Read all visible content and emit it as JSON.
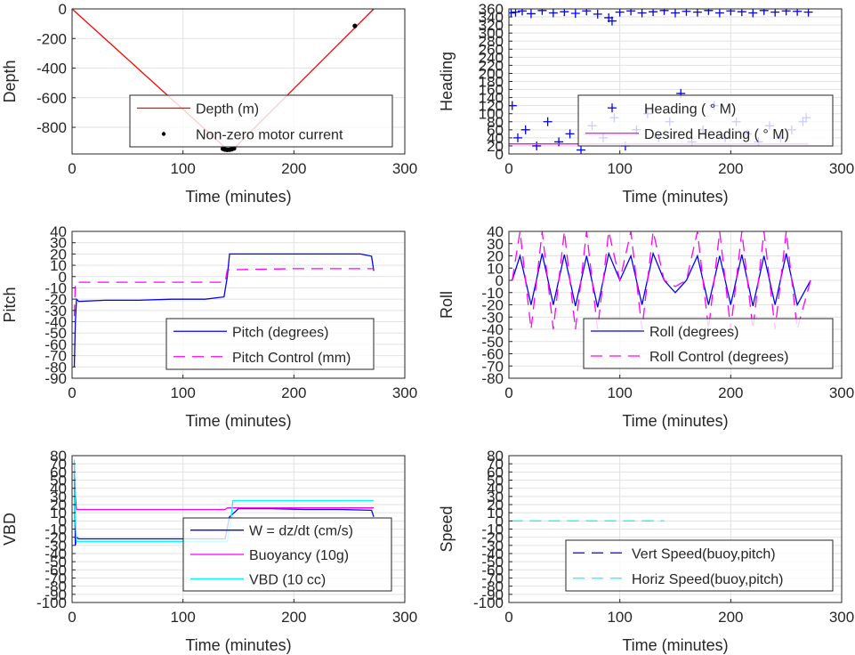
{
  "chart_data": [
    {
      "id": "depth",
      "type": "line",
      "xlabel": "Time (minutes)",
      "ylabel": "Depth",
      "xlim": [
        0,
        300
      ],
      "ylim": [
        -980,
        0
      ],
      "xticks": [
        0,
        100,
        200,
        300
      ],
      "yticks": [
        -800,
        -600,
        -400,
        -200,
        0
      ],
      "grid": true,
      "legend_position": "bottom-right",
      "series": [
        {
          "name": "Depth (m)",
          "color": "#ff0000",
          "style": "solid",
          "marker": "none",
          "x": [
            0,
            140,
            145,
            272
          ],
          "y": [
            0,
            -950,
            -950,
            0
          ]
        },
        {
          "name": "Non-zero motor current",
          "color": "#000000",
          "style": "none",
          "marker": "dot",
          "x": [
            136,
            138,
            140,
            142,
            144,
            146,
            255
          ],
          "y": [
            -945,
            -950,
            -952,
            -951,
            -948,
            -942,
            -115
          ]
        }
      ]
    },
    {
      "id": "heading",
      "type": "scatter",
      "xlabel": "Time (minutes)",
      "ylabel": "Heading",
      "xlim": [
        0,
        300
      ],
      "ylim": [
        0,
        360
      ],
      "xticks": [
        0,
        100,
        200,
        300
      ],
      "yticks": [
        0,
        20,
        40,
        60,
        80,
        100,
        120,
        140,
        160,
        180,
        200,
        220,
        240,
        260,
        280,
        300,
        320,
        340,
        360
      ],
      "grid": true,
      "legend_position": "bottom-right",
      "series": [
        {
          "name": "Heading ( ° M)",
          "color": "#0000ff",
          "style": "none",
          "marker": "plus",
          "x": [
            2,
            6,
            12,
            20,
            30,
            40,
            50,
            60,
            70,
            80,
            90,
            93,
            100,
            110,
            120,
            130,
            140,
            150,
            160,
            170,
            180,
            190,
            200,
            210,
            220,
            230,
            240,
            250,
            260,
            270,
            3,
            8,
            15,
            25,
            35,
            45,
            55,
            65,
            75,
            85,
            95,
            105,
            115,
            125,
            135,
            145,
            155,
            165,
            175,
            185,
            195,
            205,
            215,
            225,
            235,
            245,
            255,
            265,
            268
          ],
          "y": [
            350,
            352,
            355,
            348,
            356,
            350,
            353,
            349,
            355,
            347,
            338,
            330,
            352,
            355,
            350,
            353,
            356,
            350,
            354,
            352,
            356,
            350,
            355,
            353,
            350,
            356,
            352,
            355,
            354,
            352,
            120,
            40,
            60,
            20,
            80,
            30,
            50,
            10,
            70,
            40,
            90,
            20,
            60,
            100,
            40,
            80,
            150,
            30,
            60,
            120,
            40,
            80,
            50,
            30,
            70,
            40,
            60,
            80,
            90
          ]
        },
        {
          "name": "Desired Heading ( ° M)",
          "color": "#ff00ff",
          "style": "solid",
          "marker": "none",
          "x": [
            0,
            50,
            100,
            150,
            200,
            270
          ],
          "y": [
            25,
            25,
            25,
            25,
            25,
            25
          ]
        }
      ]
    },
    {
      "id": "pitch",
      "type": "line",
      "xlabel": "Time (minutes)",
      "ylabel": "Pitch",
      "xlim": [
        0,
        300
      ],
      "ylim": [
        -90,
        40
      ],
      "xticks": [
        0,
        100,
        200,
        300
      ],
      "yticks": [
        -90,
        -80,
        -70,
        -60,
        -50,
        -40,
        -30,
        -20,
        -10,
        0,
        10,
        20,
        30,
        40
      ],
      "grid": true,
      "legend_position": "bottom-right",
      "series": [
        {
          "name": "Pitch (degrees)",
          "color": "#0000ff",
          "style": "solid",
          "marker": "none",
          "x": [
            2,
            3,
            4,
            6,
            30,
            60,
            90,
            120,
            137,
            140,
            142,
            170,
            200,
            230,
            260,
            270,
            272
          ],
          "y": [
            -80,
            -40,
            -20,
            -22,
            -21,
            -21,
            -20,
            -20,
            -18,
            0,
            20,
            20,
            20,
            20,
            20,
            18,
            5
          ]
        },
        {
          "name": "Pitch Control (mm)",
          "color": "#ff00ff",
          "style": "dash",
          "marker": "none",
          "x": [
            2,
            3,
            10,
            60,
            100,
            138,
            140,
            200,
            272
          ],
          "y": [
            -35,
            -5,
            -5,
            -5,
            -5,
            -5,
            6,
            7,
            7
          ]
        }
      ]
    },
    {
      "id": "roll",
      "type": "line",
      "xlabel": "Time (minutes)",
      "ylabel": "Roll",
      "xlim": [
        0,
        300
      ],
      "ylim": [
        -80,
        40
      ],
      "xticks": [
        0,
        100,
        200,
        300
      ],
      "yticks": [
        -80,
        -70,
        -60,
        -50,
        -40,
        -30,
        -20,
        -10,
        0,
        10,
        20,
        30,
        40
      ],
      "grid": true,
      "legend_position": "bottom-right",
      "series": [
        {
          "name": "Roll (degrees)",
          "color": "#0000ff",
          "style": "solid",
          "marker": "none",
          "x": [
            3,
            10,
            20,
            30,
            40,
            50,
            60,
            70,
            80,
            90,
            100,
            110,
            120,
            130,
            140,
            150,
            160,
            170,
            180,
            190,
            200,
            210,
            220,
            230,
            240,
            250,
            260,
            272
          ],
          "y": [
            0,
            20,
            -20,
            22,
            -20,
            21,
            -21,
            20,
            -22,
            22,
            0,
            20,
            -20,
            22,
            0,
            -10,
            0,
            20,
            -20,
            20,
            -20,
            21,
            -21,
            20,
            -20,
            22,
            -20,
            0
          ]
        },
        {
          "name": "Roll Control (degrees)",
          "color": "#ff00ff",
          "style": "dash",
          "marker": "none",
          "x": [
            3,
            10,
            20,
            30,
            40,
            50,
            60,
            70,
            80,
            90,
            100,
            110,
            120,
            130,
            140,
            150,
            160,
            170,
            180,
            190,
            200,
            210,
            220,
            230,
            240,
            250,
            260,
            272
          ],
          "y": [
            0,
            40,
            -40,
            40,
            -40,
            40,
            -40,
            40,
            -40,
            40,
            0,
            40,
            -40,
            40,
            0,
            -5,
            0,
            40,
            -40,
            40,
            -40,
            40,
            -40,
            40,
            -40,
            40,
            -40,
            0
          ]
        }
      ]
    },
    {
      "id": "vbd",
      "type": "line",
      "xlabel": "Time (minutes)",
      "ylabel": "VBD",
      "xlim": [
        0,
        300
      ],
      "ylim": [
        -100,
        80
      ],
      "xticks": [
        0,
        100,
        200,
        300
      ],
      "yticks": [
        -100,
        -90,
        -80,
        -70,
        -60,
        -50,
        -40,
        -30,
        -20,
        -10,
        0,
        10,
        20,
        30,
        40,
        50,
        60,
        70,
        80
      ],
      "grid": true,
      "legend_position": "bottom-right",
      "series": [
        {
          "name": "W = dz/dt (cm/s)",
          "color": "#0000ff",
          "style": "solid",
          "marker": "none",
          "x": [
            2,
            3,
            4,
            6,
            30,
            60,
            90,
            120,
            138,
            142,
            150,
            180,
            210,
            240,
            270,
            272
          ],
          "y": [
            60,
            -30,
            -20,
            -22,
            -22,
            -22,
            -22,
            -22,
            -22,
            5,
            15,
            15,
            14,
            14,
            13,
            5
          ]
        },
        {
          "name": "Buoyancy (10g)",
          "color": "#ff00ff",
          "style": "solid",
          "marker": "none",
          "x": [
            2,
            3,
            4,
            60,
            100,
            138,
            140,
            200,
            272
          ],
          "y": [
            70,
            30,
            14,
            14,
            14,
            14,
            16,
            16,
            16
          ]
        },
        {
          "name": "VBD (10 cc)",
          "color": "#00ffff",
          "style": "solid",
          "marker": "none",
          "x": [
            2,
            3,
            4,
            60,
            100,
            140,
            143,
            145,
            200,
            272
          ],
          "y": [
            75,
            0,
            -25,
            -25,
            -25,
            -25,
            0,
            25,
            25,
            25
          ]
        }
      ]
    },
    {
      "id": "speed",
      "type": "line",
      "xlabel": "Time (minutes)",
      "ylabel": "Speed",
      "xlim": [
        0,
        300
      ],
      "ylim": [
        -100,
        80
      ],
      "xticks": [
        0,
        100,
        200,
        300
      ],
      "yticks": [
        -100,
        -90,
        -80,
        -70,
        -60,
        -50,
        -40,
        -30,
        -20,
        -10,
        0,
        10,
        20,
        30,
        40,
        50,
        60,
        70,
        80
      ],
      "grid": true,
      "legend_position": "bottom-right",
      "series": [
        {
          "name": "Vert Speed(buoy,pitch)",
          "color": "#0000ff",
          "style": "dash",
          "marker": "none",
          "x": [],
          "y": []
        },
        {
          "name": "Horiz Speed(buoy,pitch)",
          "color": "#00ffff",
          "style": "dash",
          "marker": "none",
          "x": [
            2,
            140
          ],
          "y": [
            0,
            0
          ]
        }
      ]
    }
  ]
}
